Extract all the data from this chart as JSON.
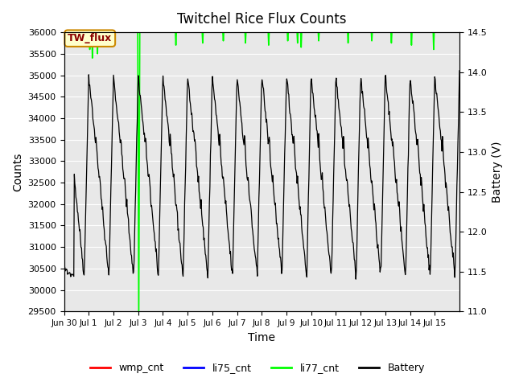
{
  "title": "Twitchel Rice Flux Counts",
  "xlabel": "Time",
  "ylabel_left": "Counts",
  "ylabel_right": "Battery (V)",
  "ylim_left": [
    29500,
    36000
  ],
  "ylim_right": [
    11.0,
    14.5
  ],
  "xtick_labels": [
    "Jun 30",
    "Jul 1",
    "Jul 2",
    "Jul 3",
    "Jul 4",
    "Jul 5",
    "Jul 6",
    "Jul 7",
    "Jul 8",
    "Jul 9",
    "Jul 10",
    "Jul 11",
    "Jul 12",
    "Jul 13",
    "Jul 14",
    "Jul 15"
  ],
  "ytick_left": [
    29500,
    30000,
    30500,
    31000,
    31500,
    32000,
    32500,
    33000,
    33500,
    34000,
    34500,
    35000,
    35500,
    36000
  ],
  "ytick_right": [
    11.0,
    11.5,
    12.0,
    12.5,
    13.0,
    13.5,
    14.0,
    14.5
  ],
  "plot_bg_color": "#e8e8e8",
  "legend_entries": [
    "wmp_cnt",
    "li75_cnt",
    "li77_cnt",
    "Battery"
  ],
  "legend_colors": [
    "red",
    "blue",
    "#00ff00",
    "black"
  ],
  "tw_flux_label": "TW_flux",
  "tw_flux_box_color": "#ffffcc",
  "tw_flux_text_color": "#8B0000",
  "tw_flux_edge_color": "#cc8800"
}
